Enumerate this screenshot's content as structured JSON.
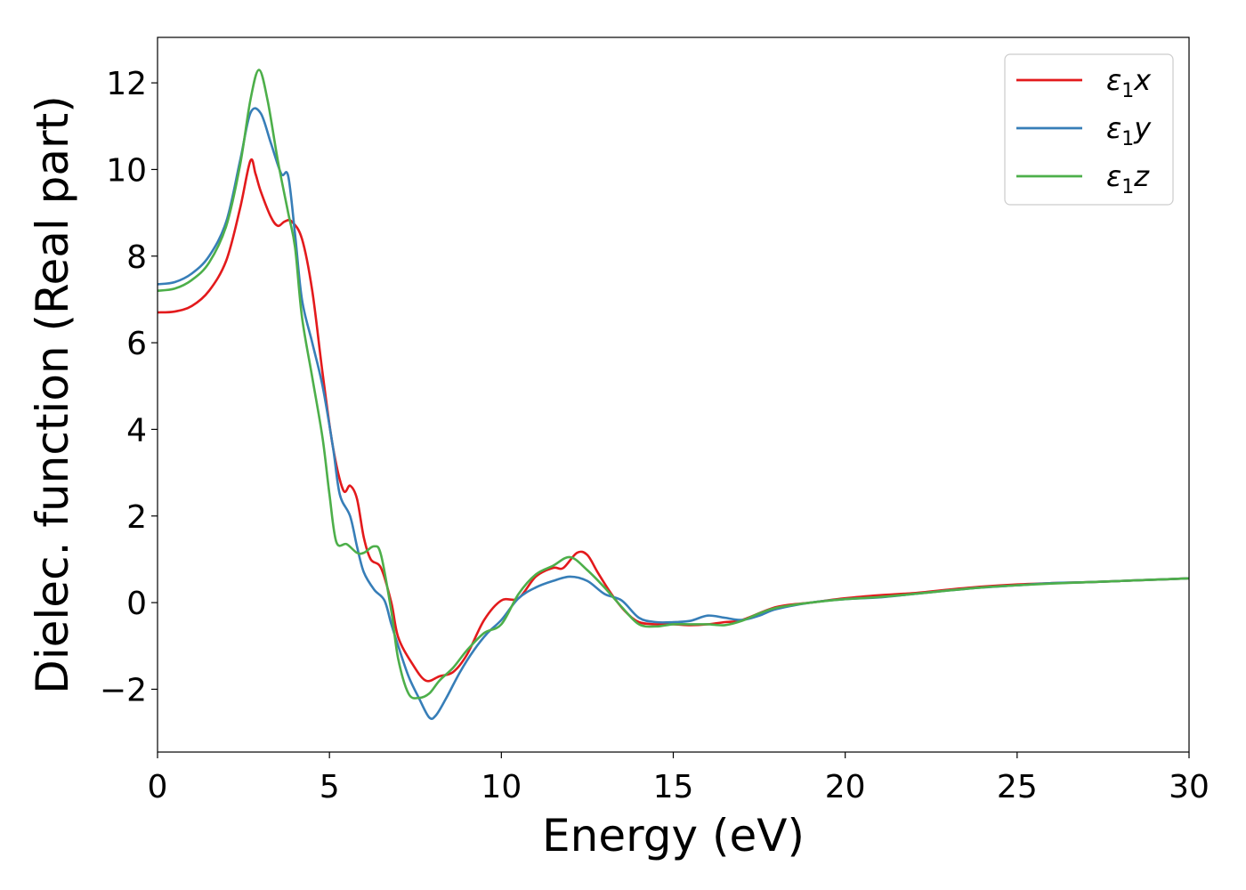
{
  "chart_data": {
    "type": "line",
    "xlabel": "Energy (eV)",
    "ylabel": "Dielec. function (Real part)",
    "xlim": [
      0,
      30
    ],
    "ylim": [
      -3.45,
      13.05
    ],
    "xticks": [
      0,
      5,
      10,
      15,
      20,
      25,
      30
    ],
    "xtick_labels": [
      "0",
      "5",
      "10",
      "15",
      "20",
      "25",
      "30"
    ],
    "yticks": [
      -2,
      0,
      2,
      4,
      6,
      8,
      10,
      12
    ],
    "ytick_labels": [
      "−2",
      "0",
      "2",
      "4",
      "6",
      "8",
      "10",
      "12"
    ],
    "grid": false,
    "legend_position": "top-right",
    "series": [
      {
        "name": "ε₁x",
        "legend_base": "ε",
        "legend_sub": "1",
        "legend_suffix": "x",
        "color": "#e31a1c",
        "points": [
          [
            0,
            6.7
          ],
          [
            0.5,
            6.72
          ],
          [
            1.0,
            6.85
          ],
          [
            1.5,
            7.2
          ],
          [
            2.0,
            7.9
          ],
          [
            2.4,
            9.1
          ],
          [
            2.7,
            10.2
          ],
          [
            2.85,
            9.9
          ],
          [
            3.0,
            9.5
          ],
          [
            3.3,
            8.9
          ],
          [
            3.5,
            8.7
          ],
          [
            3.7,
            8.8
          ],
          [
            3.9,
            8.8
          ],
          [
            4.2,
            8.4
          ],
          [
            4.5,
            7.2
          ],
          [
            4.8,
            5.3
          ],
          [
            5.1,
            3.6
          ],
          [
            5.4,
            2.6
          ],
          [
            5.6,
            2.7
          ],
          [
            5.8,
            2.4
          ],
          [
            6.0,
            1.5
          ],
          [
            6.2,
            1.0
          ],
          [
            6.5,
            0.8
          ],
          [
            6.8,
            0.0
          ],
          [
            7.0,
            -0.8
          ],
          [
            7.4,
            -1.4
          ],
          [
            7.8,
            -1.8
          ],
          [
            8.2,
            -1.7
          ],
          [
            8.6,
            -1.6
          ],
          [
            9.0,
            -1.2
          ],
          [
            9.5,
            -0.4
          ],
          [
            10.0,
            0.05
          ],
          [
            10.5,
            0.1
          ],
          [
            11.0,
            0.6
          ],
          [
            11.5,
            0.8
          ],
          [
            11.8,
            0.8
          ],
          [
            12.2,
            1.15
          ],
          [
            12.5,
            1.1
          ],
          [
            12.8,
            0.7
          ],
          [
            13.2,
            0.2
          ],
          [
            13.6,
            -0.2
          ],
          [
            14.0,
            -0.45
          ],
          [
            14.5,
            -0.5
          ],
          [
            15.0,
            -0.5
          ],
          [
            15.5,
            -0.52
          ],
          [
            16.0,
            -0.5
          ],
          [
            16.5,
            -0.45
          ],
          [
            17.0,
            -0.4
          ],
          [
            18.0,
            -0.1
          ],
          [
            19.0,
            0.0
          ],
          [
            20.0,
            0.1
          ],
          [
            21.0,
            0.17
          ],
          [
            22.0,
            0.22
          ],
          [
            23.0,
            0.3
          ],
          [
            24.0,
            0.37
          ],
          [
            25.0,
            0.42
          ],
          [
            26.0,
            0.45
          ],
          [
            27.0,
            0.47
          ],
          [
            28.0,
            0.5
          ],
          [
            29.0,
            0.53
          ],
          [
            30.0,
            0.56
          ]
        ]
      },
      {
        "name": "ε₁y",
        "legend_base": "ε",
        "legend_sub": "1",
        "legend_suffix": "y",
        "color": "#377eb8",
        "points": [
          [
            0,
            7.35
          ],
          [
            0.5,
            7.4
          ],
          [
            1.0,
            7.6
          ],
          [
            1.5,
            8.0
          ],
          [
            2.0,
            8.8
          ],
          [
            2.4,
            10.2
          ],
          [
            2.7,
            11.3
          ],
          [
            3.0,
            11.3
          ],
          [
            3.3,
            10.6
          ],
          [
            3.6,
            9.9
          ],
          [
            3.8,
            9.85
          ],
          [
            4.0,
            8.5
          ],
          [
            4.2,
            7.0
          ],
          [
            4.5,
            6.0
          ],
          [
            4.8,
            5.0
          ],
          [
            5.1,
            3.6
          ],
          [
            5.3,
            2.5
          ],
          [
            5.6,
            2.0
          ],
          [
            5.8,
            1.3
          ],
          [
            6.0,
            0.7
          ],
          [
            6.3,
            0.3
          ],
          [
            6.6,
            0.05
          ],
          [
            6.8,
            -0.5
          ],
          [
            7.0,
            -1.0
          ],
          [
            7.3,
            -1.7
          ],
          [
            7.6,
            -2.2
          ],
          [
            7.9,
            -2.65
          ],
          [
            8.1,
            -2.6
          ],
          [
            8.4,
            -2.2
          ],
          [
            8.8,
            -1.6
          ],
          [
            9.2,
            -1.1
          ],
          [
            9.6,
            -0.7
          ],
          [
            10.0,
            -0.4
          ],
          [
            10.5,
            0.1
          ],
          [
            11.0,
            0.35
          ],
          [
            11.5,
            0.5
          ],
          [
            12.0,
            0.6
          ],
          [
            12.5,
            0.5
          ],
          [
            13.0,
            0.2
          ],
          [
            13.5,
            0.05
          ],
          [
            14.0,
            -0.35
          ],
          [
            14.5,
            -0.45
          ],
          [
            15.0,
            -0.45
          ],
          [
            15.5,
            -0.42
          ],
          [
            16.0,
            -0.3
          ],
          [
            16.5,
            -0.35
          ],
          [
            17.0,
            -0.4
          ],
          [
            17.5,
            -0.3
          ],
          [
            18.0,
            -0.15
          ],
          [
            19.0,
            0.0
          ],
          [
            20.0,
            0.08
          ],
          [
            21.0,
            0.12
          ],
          [
            22.0,
            0.2
          ],
          [
            23.0,
            0.28
          ],
          [
            24.0,
            0.35
          ],
          [
            25.0,
            0.4
          ],
          [
            26.0,
            0.45
          ],
          [
            27.0,
            0.47
          ],
          [
            28.0,
            0.5
          ],
          [
            29.0,
            0.53
          ],
          [
            30.0,
            0.56
          ]
        ]
      },
      {
        "name": "ε₁z",
        "legend_base": "ε",
        "legend_sub": "1",
        "legend_suffix": "z",
        "color": "#4daf4a",
        "points": [
          [
            0,
            7.2
          ],
          [
            0.5,
            7.25
          ],
          [
            1.0,
            7.45
          ],
          [
            1.5,
            7.85
          ],
          [
            2.0,
            8.7
          ],
          [
            2.4,
            10.1
          ],
          [
            2.7,
            11.6
          ],
          [
            2.95,
            12.3
          ],
          [
            3.2,
            11.6
          ],
          [
            3.5,
            10.2
          ],
          [
            3.8,
            9.0
          ],
          [
            4.0,
            8.2
          ],
          [
            4.2,
            6.6
          ],
          [
            4.5,
            5.2
          ],
          [
            4.8,
            3.8
          ],
          [
            5.0,
            2.5
          ],
          [
            5.2,
            1.4
          ],
          [
            5.5,
            1.35
          ],
          [
            5.8,
            1.15
          ],
          [
            6.0,
            1.15
          ],
          [
            6.3,
            1.3
          ],
          [
            6.5,
            1.1
          ],
          [
            6.8,
            -0.2
          ],
          [
            7.0,
            -1.3
          ],
          [
            7.3,
            -2.1
          ],
          [
            7.6,
            -2.2
          ],
          [
            7.9,
            -2.1
          ],
          [
            8.2,
            -1.8
          ],
          [
            8.6,
            -1.5
          ],
          [
            9.0,
            -1.1
          ],
          [
            9.5,
            -0.7
          ],
          [
            10.0,
            -0.5
          ],
          [
            10.5,
            0.2
          ],
          [
            11.0,
            0.65
          ],
          [
            11.5,
            0.85
          ],
          [
            12.0,
            1.05
          ],
          [
            12.5,
            0.75
          ],
          [
            13.0,
            0.35
          ],
          [
            13.5,
            -0.1
          ],
          [
            14.0,
            -0.5
          ],
          [
            14.5,
            -0.55
          ],
          [
            15.0,
            -0.5
          ],
          [
            15.5,
            -0.5
          ],
          [
            16.0,
            -0.5
          ],
          [
            16.5,
            -0.52
          ],
          [
            17.0,
            -0.42
          ],
          [
            17.5,
            -0.25
          ],
          [
            18.0,
            -0.12
          ],
          [
            19.0,
            0.0
          ],
          [
            20.0,
            0.08
          ],
          [
            21.0,
            0.13
          ],
          [
            22.0,
            0.2
          ],
          [
            23.0,
            0.28
          ],
          [
            24.0,
            0.35
          ],
          [
            25.0,
            0.4
          ],
          [
            26.0,
            0.44
          ],
          [
            27.0,
            0.47
          ],
          [
            28.0,
            0.5
          ],
          [
            29.0,
            0.53
          ],
          [
            30.0,
            0.56
          ]
        ]
      }
    ]
  }
}
